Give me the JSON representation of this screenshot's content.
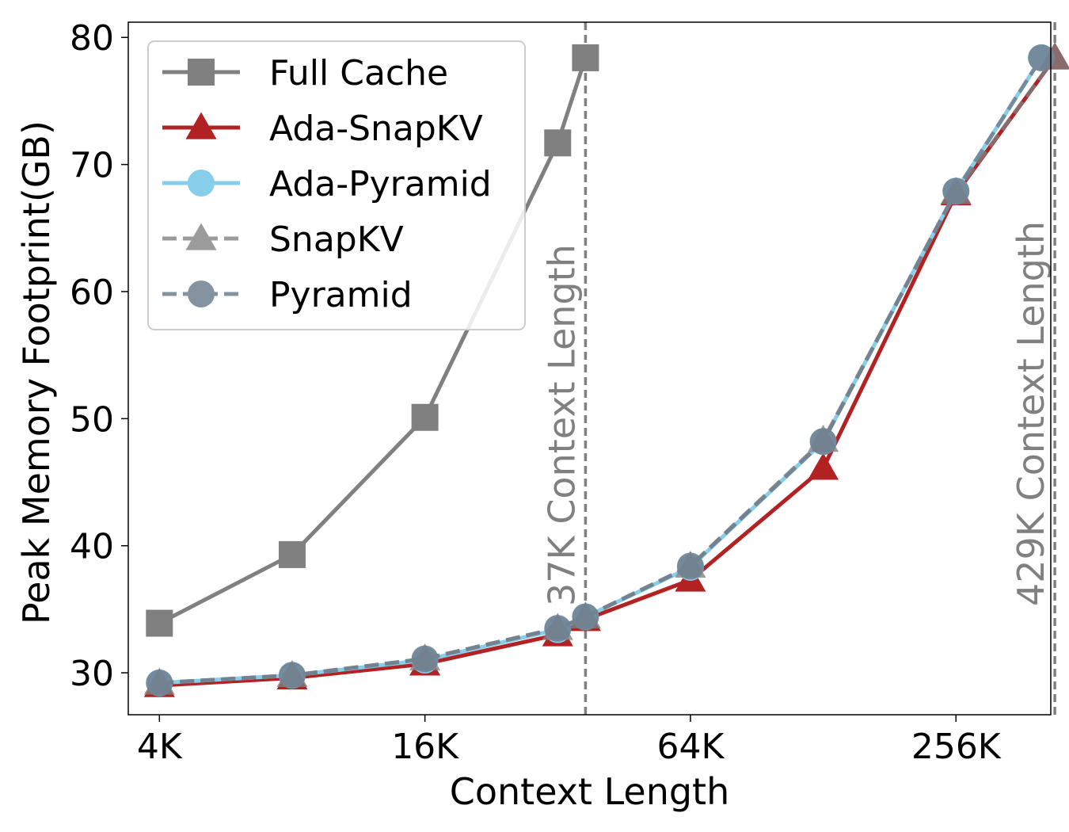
{
  "chart_data": {
    "type": "line",
    "xlabel": "Context Length",
    "ylabel": "Peak Memory Footprint(GB)",
    "x_scale": "log2",
    "xlim": [
      3.4,
      420
    ],
    "ylim": [
      26.7,
      81.2
    ],
    "x_ticks": [
      {
        "value": 4,
        "label": "4K"
      },
      {
        "value": 16,
        "label": "16K"
      },
      {
        "value": 64,
        "label": "64K"
      },
      {
        "value": 256,
        "label": "256K"
      }
    ],
    "y_ticks": [
      {
        "value": 30,
        "label": "30"
      },
      {
        "value": 40,
        "label": "40"
      },
      {
        "value": 50,
        "label": "50"
      },
      {
        "value": 60,
        "label": "60"
      },
      {
        "value": 70,
        "label": "70"
      },
      {
        "value": 80,
        "label": "80"
      }
    ],
    "legend_position": "top-left",
    "grid": false,
    "series": [
      {
        "name": "Full Cache",
        "color": "#808080",
        "marker": "square",
        "dash": "solid",
        "opacity": 1,
        "x": [
          4,
          8,
          16,
          32,
          37
        ],
        "y": [
          33.9,
          39.3,
          50.1,
          71.7,
          78.4
        ]
      },
      {
        "name": "Ada-SnapKV",
        "color": "#b22222",
        "marker": "triangle",
        "dash": "solid",
        "opacity": 1,
        "x": [
          4,
          8,
          16,
          32,
          37,
          64,
          128,
          256,
          429
        ],
        "y": [
          29.0,
          29.6,
          30.7,
          33.0,
          34.2,
          37.3,
          46.1,
          67.7,
          78.4
        ]
      },
      {
        "name": "Ada-Pyramid",
        "color": "#87ceeb",
        "marker": "circle",
        "dash": "solid",
        "opacity": 1,
        "x": [
          4,
          8,
          16,
          32,
          37,
          64,
          128,
          256,
          400
        ],
        "y": [
          29.2,
          29.8,
          31.0,
          33.4,
          34.4,
          38.3,
          48.2,
          67.9,
          78.4
        ]
      },
      {
        "name": "SnapKV",
        "color": "#808080",
        "marker": "triangle",
        "dash": "dashed",
        "opacity": 0.78,
        "x": [
          4,
          8,
          16,
          32,
          37,
          64,
          128,
          256,
          429
        ],
        "y": [
          29.2,
          29.8,
          31.1,
          33.5,
          34.4,
          38.4,
          48.3,
          67.8,
          78.4
        ]
      },
      {
        "name": "Pyramid",
        "color": "#708090",
        "marker": "circle",
        "dash": "dashed",
        "opacity": 0.85,
        "x": [
          4,
          8,
          16,
          32,
          37,
          64,
          128,
          256,
          400
        ],
        "y": [
          29.2,
          29.8,
          31.1,
          33.5,
          34.4,
          38.4,
          48.2,
          67.9,
          78.4
        ]
      }
    ],
    "vlines": [
      {
        "x": 37,
        "label": "37K Context Length",
        "color": "#808080"
      },
      {
        "x": 429,
        "label": "429K Context Length",
        "color": "#808080"
      }
    ]
  }
}
